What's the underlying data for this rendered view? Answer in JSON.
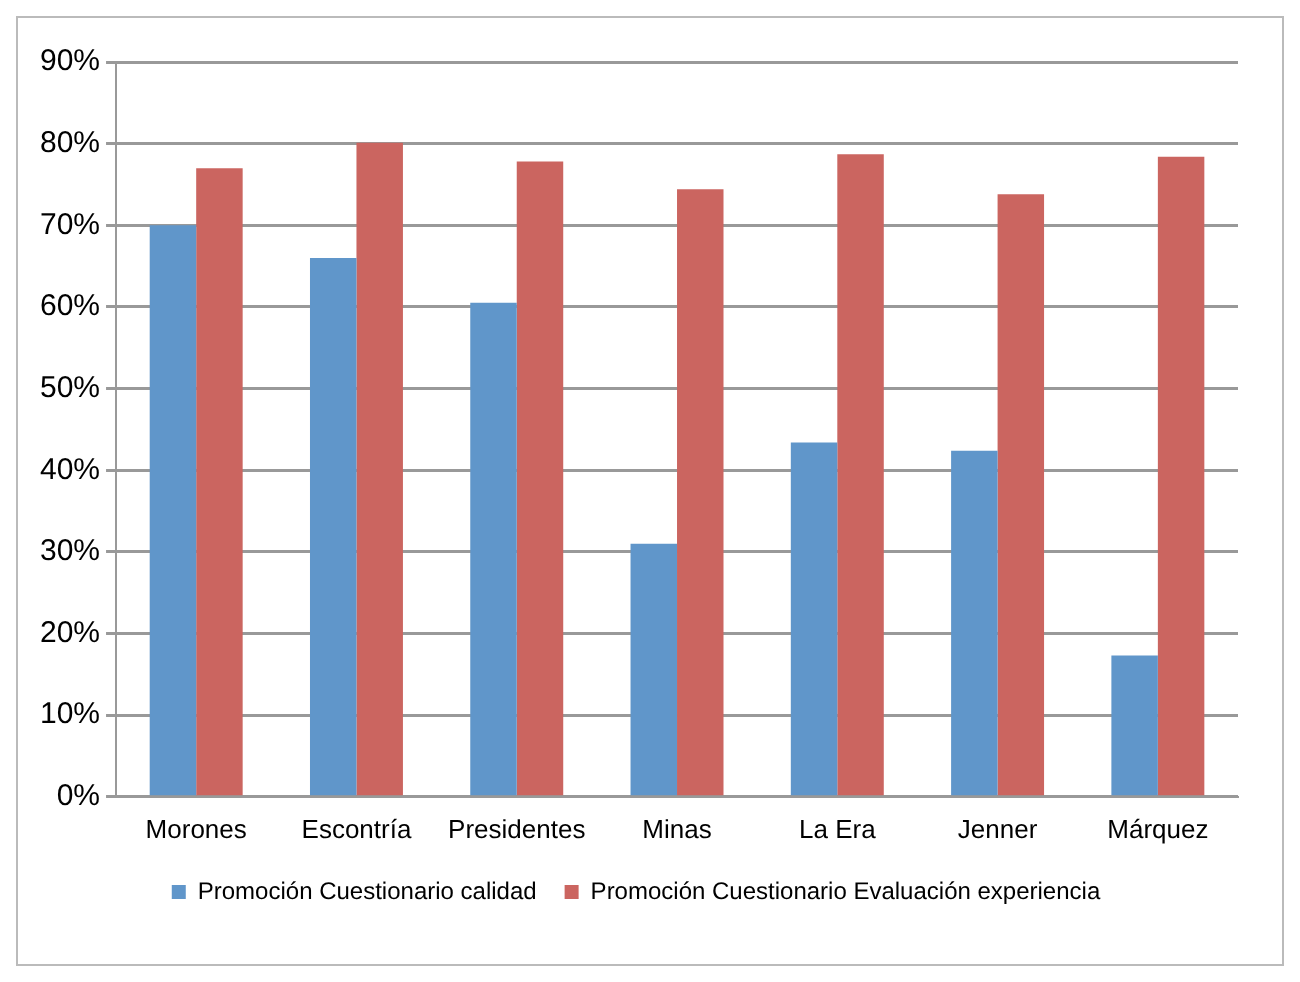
{
  "chart_data": {
    "type": "bar",
    "categories": [
      "Morones",
      "Escontría",
      "Presidentes",
      "Minas",
      "La Era",
      "Jenner",
      "Márquez"
    ],
    "series": [
      {
        "name": "Promoción Cuestionario calidad",
        "color": "#6096ca",
        "values": [
          70,
          66,
          60.5,
          31,
          43.4,
          42.4,
          17.3
        ]
      },
      {
        "name": "Promoción Cuestionario Evaluación experiencia",
        "color": "#cb6560",
        "values": [
          77,
          80.1,
          77.8,
          74.4,
          78.7,
          73.8,
          78.4
        ]
      }
    ],
    "ylim": [
      0,
      90
    ],
    "yticks": [
      {
        "value": 0,
        "label": "0%"
      },
      {
        "value": 10,
        "label": "10%"
      },
      {
        "value": 20,
        "label": "20%"
      },
      {
        "value": 30,
        "label": "30%"
      },
      {
        "value": 40,
        "label": "40%"
      },
      {
        "value": 50,
        "label": "50%"
      },
      {
        "value": 60,
        "label": "60%"
      },
      {
        "value": 70,
        "label": "70%"
      },
      {
        "value": 80,
        "label": "80%"
      },
      {
        "value": 90,
        "label": "90%"
      }
    ],
    "grid": "y",
    "legend": "bottom"
  }
}
